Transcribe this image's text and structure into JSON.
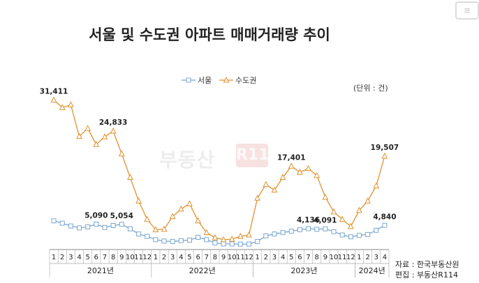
{
  "title": "서울 및 수도권 아파트 매매거래량 추이",
  "unit": "(단위 : 건)",
  "source_lines": [
    "자료 : 한국부동산원",
    "편집 : 부동산R114"
  ],
  "watermark": "부동산",
  "watermark_badge": "R114",
  "colors": {
    "seoul": "#7aa7cf",
    "capital": "#e0912e",
    "axis": "#888888"
  },
  "chart_data": {
    "type": "line",
    "title": "서울 및 수도권 아파트 매매거래량 추이",
    "legend_position": "top-center",
    "grid": false,
    "months": [
      "1",
      "2",
      "3",
      "4",
      "5",
      "6",
      "7",
      "8",
      "9",
      "10",
      "11",
      "12",
      "1",
      "2",
      "3",
      "4",
      "5",
      "6",
      "7",
      "8",
      "9",
      "10",
      "11",
      "12",
      "1",
      "2",
      "3",
      "4",
      "5",
      "6",
      "7",
      "8",
      "9",
      "10",
      "11",
      "12",
      "1",
      "2",
      "3",
      "4"
    ],
    "years": [
      {
        "label": "2021년",
        "start": 0,
        "end": 11
      },
      {
        "label": "2022년",
        "start": 12,
        "end": 23
      },
      {
        "label": "2023년",
        "start": 24,
        "end": 35
      },
      {
        "label": "2024년",
        "start": 36,
        "end": 39
      }
    ],
    "ylim": [
      0,
      34000
    ],
    "series": [
      {
        "name": "서울",
        "marker": "square",
        "values": [
          5800,
          5300,
          4700,
          4300,
          4500,
          5090,
          4400,
          4800,
          5054,
          4100,
          3000,
          2500,
          1800,
          1500,
          1400,
          1600,
          1700,
          2300,
          1800,
          1100,
          900,
          900,
          850,
          880,
          1400,
          2600,
          3000,
          3300,
          3600,
          3900,
          4136,
          4000,
          4091,
          3500,
          2800,
          2400,
          2700,
          2900,
          3800,
          4840
        ]
      },
      {
        "name": "수도권",
        "marker": "triangle",
        "values": [
          31411,
          29800,
          30400,
          23700,
          25400,
          22000,
          23600,
          24833,
          20000,
          15000,
          10000,
          6100,
          3900,
          4000,
          6700,
          8300,
          9400,
          5800,
          3300,
          2200,
          1800,
          1900,
          2500,
          2800,
          10600,
          13500,
          12300,
          15000,
          17401,
          16100,
          16900,
          15400,
          10800,
          7700,
          6100,
          4600,
          8000,
          10000,
          13200,
          19507
        ]
      }
    ],
    "data_labels": [
      {
        "series": 1,
        "index": 0,
        "text": "31,411"
      },
      {
        "series": 1,
        "index": 7,
        "text": "24,833"
      },
      {
        "series": 1,
        "index": 28,
        "text": "17,401"
      },
      {
        "series": 1,
        "index": 39,
        "text": "19,507"
      },
      {
        "series": 0,
        "index": 5,
        "text": "5,090"
      },
      {
        "series": 0,
        "index": 8,
        "text": "5,054"
      },
      {
        "series": 0,
        "index": 30,
        "text": "4,136"
      },
      {
        "series": 0,
        "index": 32,
        "text": "4,091"
      },
      {
        "series": 0,
        "index": 39,
        "text": "4,840"
      }
    ]
  }
}
